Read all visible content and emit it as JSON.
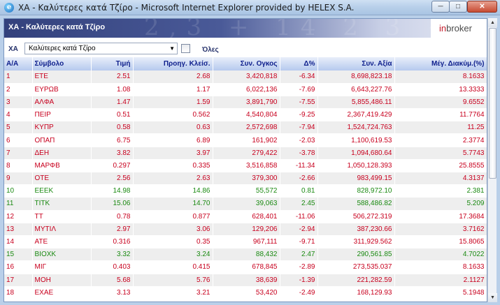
{
  "window": {
    "title": "ΧΑ - Καλύτερες κατά Τζίρο - Microsoft Internet Explorer provided by HELEX S.A.",
    "app_icon": "e",
    "minimize_icon": "minimize-icon",
    "maximize_icon": "maximize-icon",
    "close_icon": "close-icon"
  },
  "banner": {
    "title": "ΧΑ - Καλύτερες κατά Τζίρο",
    "decoration": "2,3 + 14 2 3 +",
    "logo_prefix": "in",
    "logo_main": "broker"
  },
  "filter": {
    "market_label": "ΧΑ",
    "dropdown_value": "Καλύτερες κατά Τζίρο",
    "dropdown_arrow": "▼",
    "all_label": "Όλες",
    "all_checked": false
  },
  "table": {
    "headers": {
      "rank": "Α/Α",
      "symbol": "Σύμβολο",
      "price": "Τιμή",
      "prev_close": "Προηγ. Κλείσ.",
      "volume": "Συν. Ογκος",
      "change": "Δ%",
      "value": "Συν. Αξία",
      "max_range": "Μέγ. Διακύμ.(%)"
    },
    "rows": [
      {
        "rank": "1",
        "symbol": "ΕΤΕ",
        "price": "2.51",
        "prev_close": "2.68",
        "volume": "3,420,818",
        "change": "-6.34",
        "value": "8,698,823.18",
        "max_range": "8.1633",
        "trend": "down"
      },
      {
        "rank": "2",
        "symbol": "ΕΥΡΩΒ",
        "price": "1.08",
        "prev_close": "1.17",
        "volume": "6,022,136",
        "change": "-7.69",
        "value": "6,643,227.76",
        "max_range": "13.3333",
        "trend": "down"
      },
      {
        "rank": "3",
        "symbol": "ΑΛΦΑ",
        "price": "1.47",
        "prev_close": "1.59",
        "volume": "3,891,790",
        "change": "-7.55",
        "value": "5,855,486.11",
        "max_range": "9.6552",
        "trend": "down"
      },
      {
        "rank": "4",
        "symbol": "ΠΕΙΡ",
        "price": "0.51",
        "prev_close": "0.562",
        "volume": "4,540,804",
        "change": "-9.25",
        "value": "2,367,419.429",
        "max_range": "11.7764",
        "trend": "down"
      },
      {
        "rank": "5",
        "symbol": "ΚΥΠΡ",
        "price": "0.58",
        "prev_close": "0.63",
        "volume": "2,572,698",
        "change": "-7.94",
        "value": "1,524,724.763",
        "max_range": "11.25",
        "trend": "down"
      },
      {
        "rank": "6",
        "symbol": "ΟΠΑΠ",
        "price": "6.75",
        "prev_close": "6.89",
        "volume": "161,902",
        "change": "-2.03",
        "value": "1,100,619.53",
        "max_range": "2.3774",
        "trend": "down"
      },
      {
        "rank": "7",
        "symbol": "ΔΕΗ",
        "price": "3.82",
        "prev_close": "3.97",
        "volume": "279,422",
        "change": "-3.78",
        "value": "1,094,680.64",
        "max_range": "5.7743",
        "trend": "down"
      },
      {
        "rank": "8",
        "symbol": "ΜΑΡΦΒ",
        "price": "0.297",
        "prev_close": "0.335",
        "volume": "3,516,858",
        "change": "-11.34",
        "value": "1,050,128.393",
        "max_range": "25.8555",
        "trend": "down"
      },
      {
        "rank": "9",
        "symbol": "ΟΤΕ",
        "price": "2.56",
        "prev_close": "2.63",
        "volume": "379,300",
        "change": "-2.66",
        "value": "983,499.15",
        "max_range": "4.3137",
        "trend": "down"
      },
      {
        "rank": "10",
        "symbol": "ΕΕΕΚ",
        "price": "14.98",
        "prev_close": "14.86",
        "volume": "55,572",
        "change": "0.81",
        "value": "828,972.10",
        "max_range": "2.381",
        "trend": "up"
      },
      {
        "rank": "11",
        "symbol": "ΤΙΤΚ",
        "price": "15.06",
        "prev_close": "14.70",
        "volume": "39,063",
        "change": "2.45",
        "value": "588,486.82",
        "max_range": "5.209",
        "trend": "up"
      },
      {
        "rank": "12",
        "symbol": "ΤΤ",
        "price": "0.78",
        "prev_close": "0.877",
        "volume": "628,401",
        "change": "-11.06",
        "value": "506,272.319",
        "max_range": "17.3684",
        "trend": "down"
      },
      {
        "rank": "13",
        "symbol": "ΜΥΤΙΛ",
        "price": "2.97",
        "prev_close": "3.06",
        "volume": "129,206",
        "change": "-2.94",
        "value": "387,230.66",
        "max_range": "3.7162",
        "trend": "down"
      },
      {
        "rank": "14",
        "symbol": "ΑΤΕ",
        "price": "0.316",
        "prev_close": "0.35",
        "volume": "967,111",
        "change": "-9.71",
        "value": "311,929.562",
        "max_range": "15.8065",
        "trend": "down"
      },
      {
        "rank": "15",
        "symbol": "ΒΙΟΧΚ",
        "price": "3.32",
        "prev_close": "3.24",
        "volume": "88,432",
        "change": "2.47",
        "value": "290,561.85",
        "max_range": "4.7022",
        "trend": "up"
      },
      {
        "rank": "16",
        "symbol": "ΜΙΓ",
        "price": "0.403",
        "prev_close": "0.415",
        "volume": "678,845",
        "change": "-2.89",
        "value": "273,535.037",
        "max_range": "8.1633",
        "trend": "down"
      },
      {
        "rank": "17",
        "symbol": "ΜΟΗ",
        "price": "5.68",
        "prev_close": "5.76",
        "volume": "38,639",
        "change": "-1.39",
        "value": "221,282.59",
        "max_range": "2.1127",
        "trend": "down"
      },
      {
        "rank": "18",
        "symbol": "ΕΧΑΕ",
        "price": "3.13",
        "prev_close": "3.21",
        "volume": "53,420",
        "change": "-2.49",
        "value": "168,129.93",
        "max_range": "5.1948",
        "trend": "down"
      }
    ]
  },
  "scrollbar": {
    "up_arrow": "▲",
    "down_arrow": "▼"
  },
  "colors": {
    "down": "#c8001e",
    "up": "#1b8a12",
    "header_text": "#0e1f8c"
  }
}
